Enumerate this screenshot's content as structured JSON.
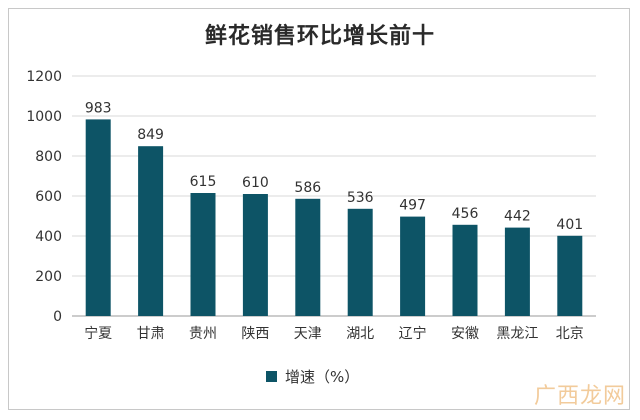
{
  "chart_data": {
    "type": "bar",
    "title": "鲜花销售环比增长前十",
    "categories": [
      "宁夏",
      "甘肃",
      "贵州",
      "陕西",
      "天津",
      "湖北",
      "辽宁",
      "安徽",
      "黑龙江",
      "北京"
    ],
    "series": [
      {
        "name": "增速（%）",
        "values": [
          983,
          849,
          615,
          610,
          586,
          536,
          497,
          456,
          442,
          401
        ]
      }
    ],
    "ylim": [
      0,
      1200
    ],
    "yticks": [
      0,
      200,
      400,
      600,
      800,
      1000,
      1200
    ],
    "grid": true,
    "legend_position": "bottom",
    "bar_color": "#0d5466"
  },
  "watermark": "广西龙网"
}
